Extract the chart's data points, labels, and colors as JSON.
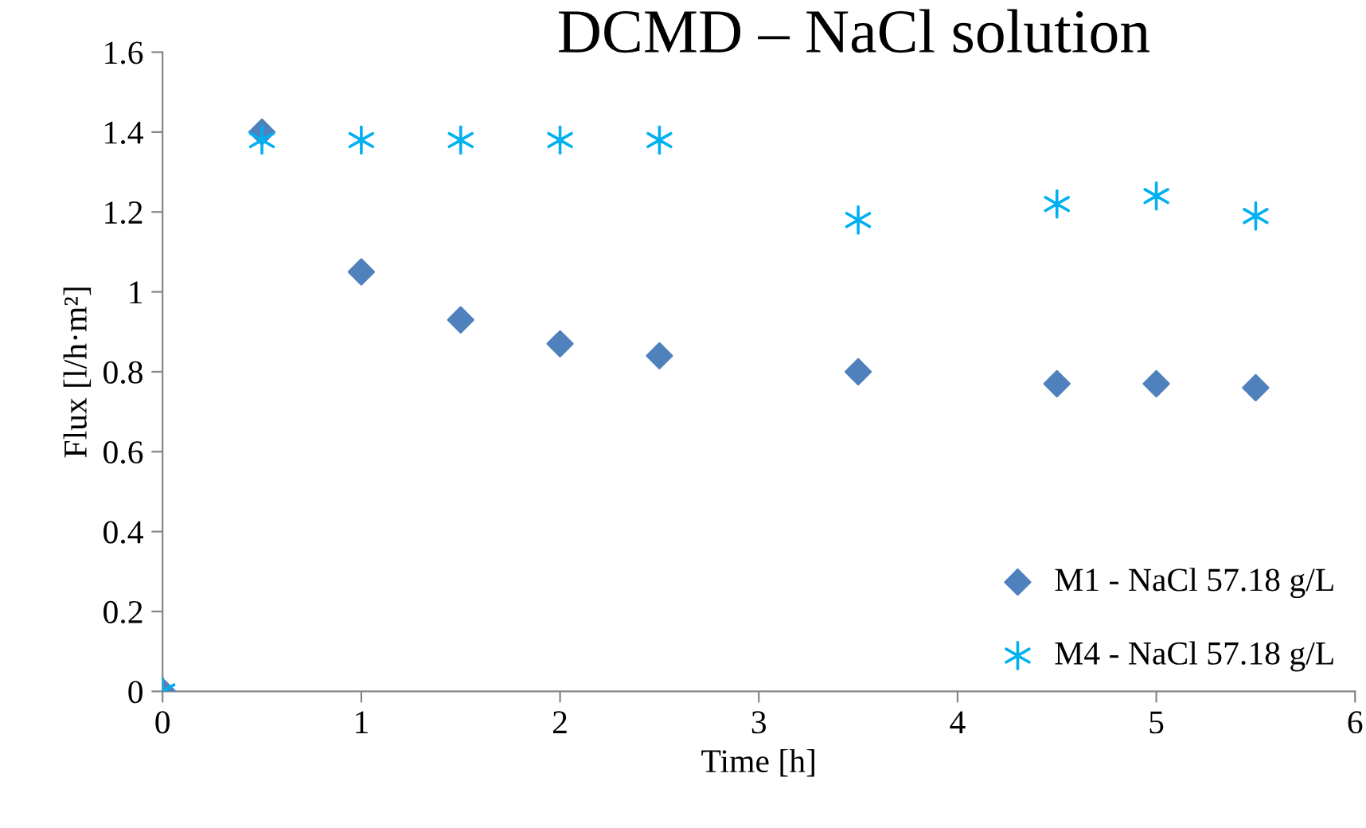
{
  "chart_data": {
    "type": "scatter",
    "title": "DCMD – NaCl solution",
    "xlabel": "Time [h]",
    "ylabel": "Flux [l/h·m²]",
    "xlim": [
      0,
      6
    ],
    "xticks": [
      0,
      1,
      2,
      3,
      4,
      5,
      6
    ],
    "ylim": [
      0,
      1.6
    ],
    "yticks": [
      0,
      0.2,
      0.4,
      0.6,
      0.8,
      1,
      1.2,
      1.4,
      1.6
    ],
    "grid": false,
    "legend": "bottom right",
    "series": [
      {
        "name": "M1 - NaCl 57.18 g/L",
        "color": "#4f81bd",
        "marker": "diamond",
        "x": [
          0,
          0.5,
          1,
          1.5,
          2,
          2.5,
          3.5,
          4.5,
          5,
          5.5
        ],
        "values": [
          0,
          1.4,
          1.05,
          0.93,
          0.87,
          0.84,
          0.8,
          0.77,
          0.77,
          0.76
        ]
      },
      {
        "name": "M4 - NaCl 57.18 g/L",
        "color": "#00b0f0",
        "marker": "cross",
        "x": [
          0,
          0.5,
          1,
          1.5,
          2,
          2.5,
          3.5,
          4.5,
          5,
          5.5
        ],
        "values": [
          0,
          1.38,
          1.38,
          1.38,
          1.38,
          1.38,
          1.18,
          1.22,
          1.24,
          1.19
        ]
      }
    ]
  }
}
